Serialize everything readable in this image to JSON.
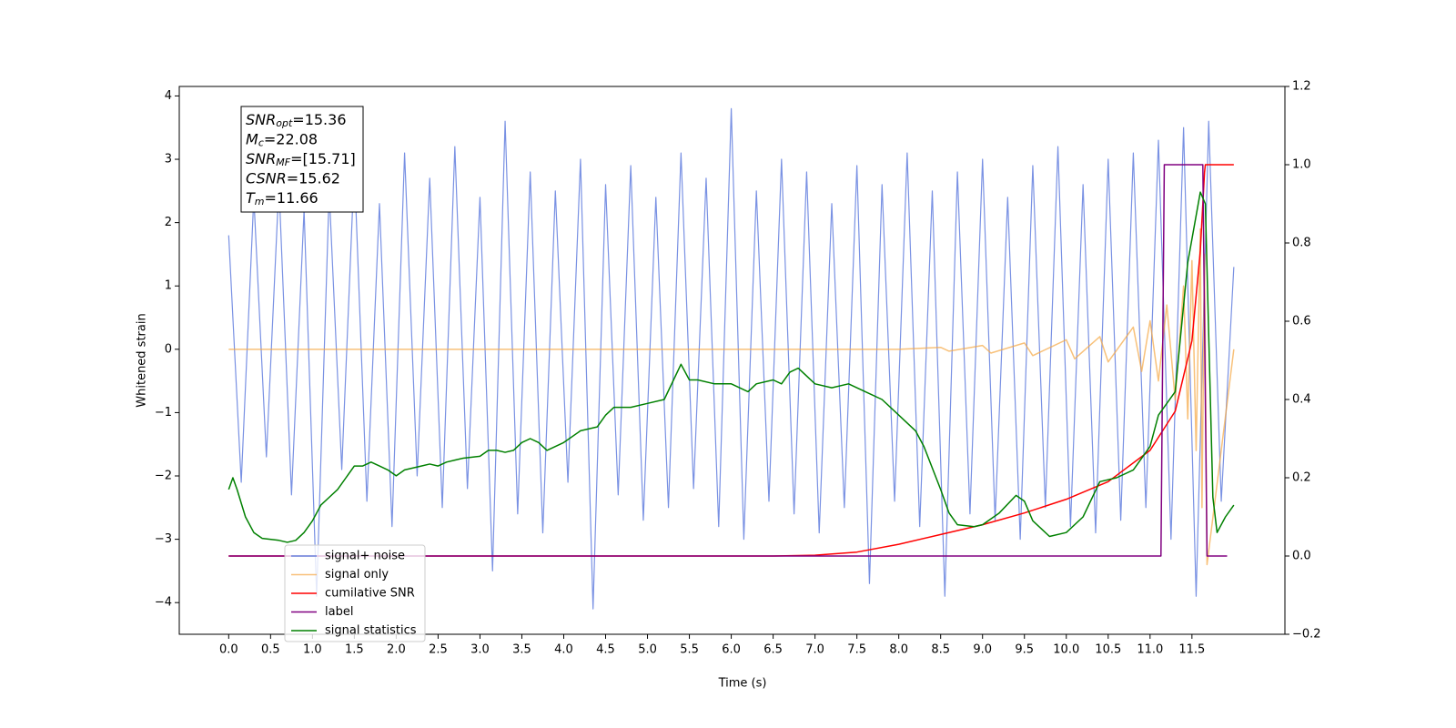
{
  "chart_data": {
    "type": "line",
    "xlabel": "Time (s)",
    "ylabel": "Whitened strain",
    "xlim": [
      -0.59,
      12.61
    ],
    "ylim": [
      -4.5,
      4.15
    ],
    "y2lim": [
      -0.2,
      1.2
    ],
    "xticks": [
      {
        "value": 0,
        "label": "0.0"
      },
      0.5,
      {
        "value": 1,
        "label": "1.0"
      },
      1.5,
      {
        "value": 2,
        "label": "2.0"
      },
      2.5,
      {
        "value": 3,
        "label": "3.0"
      },
      3.5,
      {
        "value": 4,
        "label": "4.0"
      },
      4.5,
      {
        "value": 5,
        "label": "5.0"
      },
      5.5,
      {
        "value": 6,
        "label": "6.0"
      },
      6.5,
      {
        "value": 7,
        "label": "7.0"
      },
      7.5,
      {
        "value": 8,
        "label": "8.0"
      },
      8.5,
      {
        "value": 9,
        "label": "9.0"
      },
      9.5,
      {
        "value": 10,
        "label": "10.0"
      },
      10.5,
      {
        "value": 11,
        "label": "11.0"
      },
      11.5
    ],
    "yticks": [
      {
        "value": -4,
        "label": "−4"
      },
      {
        "value": -3,
        "label": "−3"
      },
      {
        "value": -2,
        "label": "−2"
      },
      {
        "value": -1,
        "label": "−1"
      },
      0,
      1,
      2,
      3,
      4
    ],
    "y2ticks": [
      {
        "value": -0.2,
        "label": "−0.2"
      },
      {
        "value": 0,
        "label": "0.0"
      },
      0.2,
      0.4,
      0.6,
      0.8,
      {
        "value": 1,
        "label": "1.0"
      },
      1.2
    ],
    "legend": "lower left",
    "annotation": [
      {
        "name": "SNR",
        "sub": "opt",
        "text": "=15.36"
      },
      {
        "name": "M",
        "sub": "c",
        "text": "=22.08"
      },
      {
        "name": "SNR",
        "sub": "MF",
        "text": "=[15.71]"
      },
      {
        "name": "CSNR",
        "sub": "",
        "text": "=15.62"
      },
      {
        "name": "T",
        "sub": "m",
        "text": "=11.66"
      }
    ],
    "series": [
      {
        "name": "signal+ noise",
        "color": "#6a85e0",
        "axis": "y",
        "x": [
          0,
          0.15,
          0.3,
          0.45,
          0.6,
          0.75,
          0.9,
          1.05,
          1.2,
          1.35,
          1.5,
          1.65,
          1.8,
          1.95,
          2.1,
          2.25,
          2.4,
          2.55,
          2.7,
          2.85,
          3,
          3.15,
          3.3,
          3.45,
          3.6,
          3.75,
          3.9,
          4.05,
          4.2,
          4.35,
          4.5,
          4.65,
          4.8,
          4.95,
          5.1,
          5.25,
          5.4,
          5.55,
          5.7,
          5.85,
          6,
          6.15,
          6.3,
          6.45,
          6.6,
          6.75,
          6.9,
          7.05,
          7.2,
          7.35,
          7.5,
          7.65,
          7.8,
          7.95,
          8.1,
          8.25,
          8.4,
          8.55,
          8.7,
          8.85,
          9,
          9.15,
          9.3,
          9.45,
          9.6,
          9.75,
          9.9,
          10.05,
          10.2,
          10.35,
          10.5,
          10.65,
          10.8,
          10.95,
          11.1,
          11.25,
          11.4,
          11.55,
          11.7,
          11.85,
          12
        ],
        "values": [
          1.8,
          -2.1,
          2.4,
          -1.7,
          2.6,
          -2.3,
          2.2,
          -3.9,
          2.5,
          -1.9,
          2.9,
          -2.4,
          2.3,
          -2.8,
          3.1,
          -2.0,
          2.7,
          -2.5,
          3.2,
          -2.2,
          2.4,
          -3.5,
          3.6,
          -2.6,
          2.8,
          -2.9,
          2.5,
          -2.1,
          3.0,
          -4.1,
          2.6,
          -2.3,
          2.9,
          -2.7,
          2.4,
          -2.5,
          3.1,
          -2.2,
          2.7,
          -2.8,
          3.8,
          -3.0,
          2.5,
          -2.4,
          3.0,
          -2.6,
          2.8,
          -2.9,
          2.3,
          -2.5,
          2.9,
          -3.7,
          2.6,
          -2.4,
          3.1,
          -2.8,
          2.5,
          -3.9,
          2.8,
          -2.6,
          3.0,
          -2.7,
          2.4,
          -3.0,
          2.9,
          -2.5,
          3.2,
          -2.8,
          2.6,
          -2.9,
          3.0,
          -2.7,
          3.1,
          -2.5,
          3.3,
          -3.0,
          3.5,
          -3.9,
          3.6,
          -2.4,
          1.3
        ]
      },
      {
        "name": "signal only",
        "color": "#f5a742",
        "axis": "y",
        "x": [
          0,
          8,
          8.5,
          8.6,
          9,
          9.1,
          9.5,
          9.6,
          10,
          10.1,
          10.4,
          10.5,
          10.8,
          10.9,
          11.0,
          11.1,
          11.2,
          11.3,
          11.4,
          11.45,
          11.5,
          11.55,
          11.6,
          11.62,
          11.65,
          11.68,
          12.0
        ],
        "values": [
          0,
          0,
          0.03,
          -0.03,
          0.06,
          -0.06,
          0.1,
          -0.1,
          0.15,
          -0.15,
          0.2,
          -0.2,
          0.35,
          -0.35,
          0.45,
          -0.5,
          0.7,
          -0.8,
          1.0,
          -1.1,
          1.4,
          -1.6,
          1.9,
          -2.5,
          1.5,
          -3.4,
          0
        ]
      },
      {
        "name": "cumilative SNR",
        "color": "#ff0000",
        "axis": "y2",
        "x": [
          0,
          6.5,
          7.0,
          7.5,
          8.0,
          8.5,
          9.0,
          9.5,
          10.0,
          10.5,
          11.0,
          11.3,
          11.5,
          11.6,
          11.65,
          11.66,
          12.0
        ],
        "values": [
          0,
          0,
          0.002,
          0.01,
          0.03,
          0.055,
          0.08,
          0.11,
          0.145,
          0.19,
          0.27,
          0.37,
          0.55,
          0.78,
          0.98,
          1.0,
          1.0
        ]
      },
      {
        "name": "label",
        "color": "#800080",
        "axis": "y2",
        "x": [
          0,
          11.13,
          11.17,
          11.63,
          11.68,
          11.92
        ],
        "values": [
          0,
          0,
          1,
          1,
          0,
          0
        ]
      },
      {
        "name": "signal statistics",
        "color": "#008000",
        "axis": "y2",
        "x": [
          0.0,
          0.05,
          0.1,
          0.2,
          0.3,
          0.4,
          0.6,
          0.7,
          0.8,
          0.9,
          1.0,
          1.1,
          1.2,
          1.3,
          1.4,
          1.5,
          1.6,
          1.7,
          1.8,
          1.9,
          2.0,
          2.1,
          2.2,
          2.3,
          2.4,
          2.5,
          2.6,
          2.7,
          2.8,
          3.0,
          3.1,
          3.2,
          3.3,
          3.4,
          3.5,
          3.6,
          3.7,
          3.8,
          4.0,
          4.2,
          4.4,
          4.5,
          4.6,
          4.8,
          5.0,
          5.2,
          5.4,
          5.5,
          5.6,
          5.8,
          6.0,
          6.2,
          6.3,
          6.5,
          6.6,
          6.7,
          6.8,
          7.0,
          7.2,
          7.4,
          7.6,
          7.8,
          8.0,
          8.2,
          8.3,
          8.5,
          8.6,
          8.7,
          8.9,
          9.0,
          9.2,
          9.4,
          9.5,
          9.6,
          9.8,
          10.0,
          10.2,
          10.4,
          10.6,
          10.8,
          11.0,
          11.1,
          11.3,
          11.45,
          11.6,
          11.66,
          11.75,
          11.8,
          11.9,
          12.0
        ],
        "values": [
          0.17,
          0.2,
          0.17,
          0.1,
          0.06,
          0.045,
          0.04,
          0.035,
          0.04,
          0.06,
          0.09,
          0.13,
          0.15,
          0.17,
          0.2,
          0.23,
          0.23,
          0.24,
          0.23,
          0.22,
          0.205,
          0.22,
          0.225,
          0.23,
          0.235,
          0.23,
          0.24,
          0.245,
          0.25,
          0.255,
          0.27,
          0.27,
          0.265,
          0.27,
          0.29,
          0.3,
          0.29,
          0.27,
          0.29,
          0.32,
          0.33,
          0.36,
          0.38,
          0.38,
          0.39,
          0.4,
          0.49,
          0.45,
          0.45,
          0.44,
          0.44,
          0.42,
          0.44,
          0.45,
          0.44,
          0.47,
          0.48,
          0.44,
          0.43,
          0.44,
          0.42,
          0.4,
          0.36,
          0.32,
          0.28,
          0.17,
          0.11,
          0.08,
          0.075,
          0.08,
          0.11,
          0.155,
          0.14,
          0.09,
          0.05,
          0.06,
          0.1,
          0.19,
          0.2,
          0.22,
          0.28,
          0.36,
          0.42,
          0.75,
          0.93,
          0.9,
          0.15,
          0.06,
          0.1,
          0.13
        ]
      }
    ]
  }
}
